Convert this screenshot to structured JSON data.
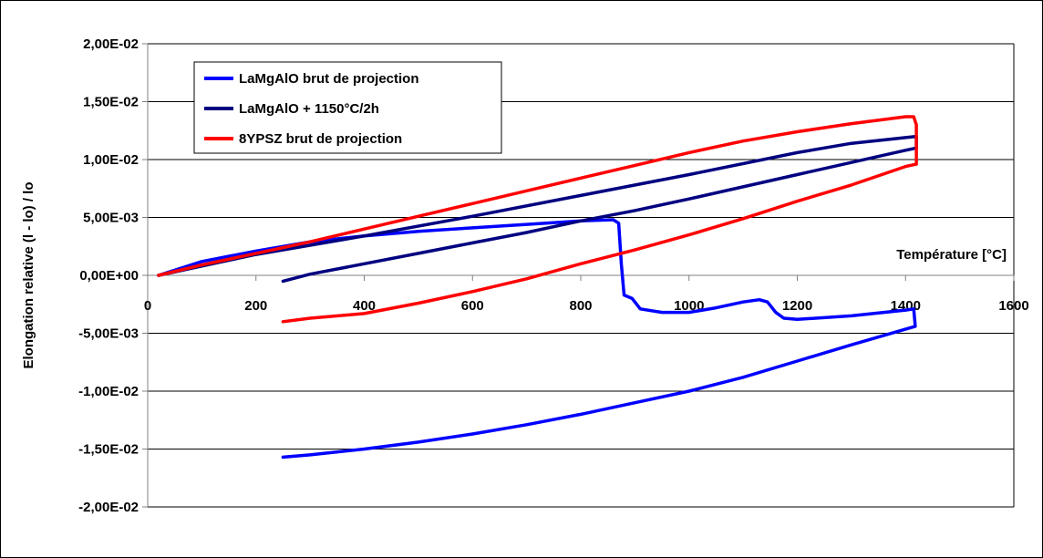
{
  "chart_data": {
    "type": "line",
    "xlabel": "Température [°C]",
    "ylabel": "Elongation relative (l - lo) / lo",
    "xlim": [
      0,
      1600
    ],
    "ylim": [
      -0.02,
      0.02
    ],
    "x_ticks": [
      "0",
      "200",
      "400",
      "600",
      "800",
      "1000",
      "1200",
      "1400",
      "1600"
    ],
    "y_ticks": [
      "2,00E-02",
      "1,50E-02",
      "1,00E-02",
      "5,00E-03",
      "0,00E+00",
      "-5,00E-03",
      "-1,00E-02",
      "-1,50E-02",
      "-2,00E-02"
    ],
    "grid": "horizontal",
    "legend_position": "top-left",
    "series": [
      {
        "name": "LaMgAlO brut de projection",
        "color": "#0000ff",
        "points": [
          [
            20,
            0
          ],
          [
            100,
            0.0012
          ],
          [
            200,
            0.0021
          ],
          [
            300,
            0.0029
          ],
          [
            400,
            0.0034
          ],
          [
            500,
            0.0038
          ],
          [
            600,
            0.0041
          ],
          [
            700,
            0.0044
          ],
          [
            800,
            0.0047
          ],
          [
            860,
            0.0048
          ],
          [
            870,
            0.0045
          ],
          [
            875,
            0.001
          ],
          [
            880,
            -0.0017
          ],
          [
            895,
            -0.002
          ],
          [
            910,
            -0.0029
          ],
          [
            950,
            -0.0032
          ],
          [
            1000,
            -0.0032
          ],
          [
            1050,
            -0.0028
          ],
          [
            1100,
            -0.0023
          ],
          [
            1130,
            -0.0021
          ],
          [
            1145,
            -0.0023
          ],
          [
            1160,
            -0.0032
          ],
          [
            1175,
            -0.0037
          ],
          [
            1200,
            -0.0038
          ],
          [
            1300,
            -0.0035
          ],
          [
            1400,
            -0.003
          ],
          [
            1415,
            -0.0029
          ],
          [
            1418,
            -0.0044
          ],
          [
            1300,
            -0.006
          ],
          [
            1200,
            -0.0074
          ],
          [
            1100,
            -0.0088
          ],
          [
            1000,
            -0.01
          ],
          [
            900,
            -0.011
          ],
          [
            800,
            -0.012
          ],
          [
            700,
            -0.0129
          ],
          [
            600,
            -0.0137
          ],
          [
            500,
            -0.0144
          ],
          [
            400,
            -0.015
          ],
          [
            300,
            -0.0155
          ],
          [
            250,
            -0.0157
          ]
        ]
      },
      {
        "name": "LaMgAlO + 1150°C/2h",
        "color": "#000080",
        "points": [
          [
            20,
            0
          ],
          [
            200,
            0.0018
          ],
          [
            400,
            0.0034
          ],
          [
            600,
            0.0051
          ],
          [
            800,
            0.0069
          ],
          [
            1000,
            0.0087
          ],
          [
            1200,
            0.0106
          ],
          [
            1300,
            0.0114
          ],
          [
            1400,
            0.0119
          ],
          [
            1420,
            0.012
          ],
          [
            1420,
            0.011
          ],
          [
            1400,
            0.0108
          ],
          [
            1200,
            0.0087
          ],
          [
            1000,
            0.0066
          ],
          [
            900,
            0.0056
          ],
          [
            800,
            0.0047
          ],
          [
            700,
            0.0037
          ],
          [
            600,
            0.0028
          ],
          [
            500,
            0.0019
          ],
          [
            400,
            0.001
          ],
          [
            300,
            0.0001
          ],
          [
            250,
            -0.0005
          ]
        ]
      },
      {
        "name": "8YPSZ brut de projection",
        "color": "#ff0000",
        "points": [
          [
            20,
            0
          ],
          [
            100,
            0.0009
          ],
          [
            200,
            0.0019
          ],
          [
            300,
            0.0029
          ],
          [
            400,
            0.004
          ],
          [
            500,
            0.0051
          ],
          [
            600,
            0.0062
          ],
          [
            700,
            0.0073
          ],
          [
            800,
            0.0084
          ],
          [
            900,
            0.0095
          ],
          [
            1000,
            0.0106
          ],
          [
            1100,
            0.0116
          ],
          [
            1200,
            0.0124
          ],
          [
            1300,
            0.0131
          ],
          [
            1400,
            0.0137
          ],
          [
            1415,
            0.0137
          ],
          [
            1420,
            0.013
          ],
          [
            1420,
            0.0096
          ],
          [
            1400,
            0.0094
          ],
          [
            1300,
            0.0078
          ],
          [
            1200,
            0.0064
          ],
          [
            1100,
            0.0049
          ],
          [
            1000,
            0.0035
          ],
          [
            900,
            0.0022
          ],
          [
            800,
            0.001
          ],
          [
            700,
            -0.0003
          ],
          [
            600,
            -0.0014
          ],
          [
            500,
            -0.0024
          ],
          [
            400,
            -0.0033
          ],
          [
            300,
            -0.0037
          ],
          [
            250,
            -0.004
          ]
        ]
      }
    ]
  }
}
